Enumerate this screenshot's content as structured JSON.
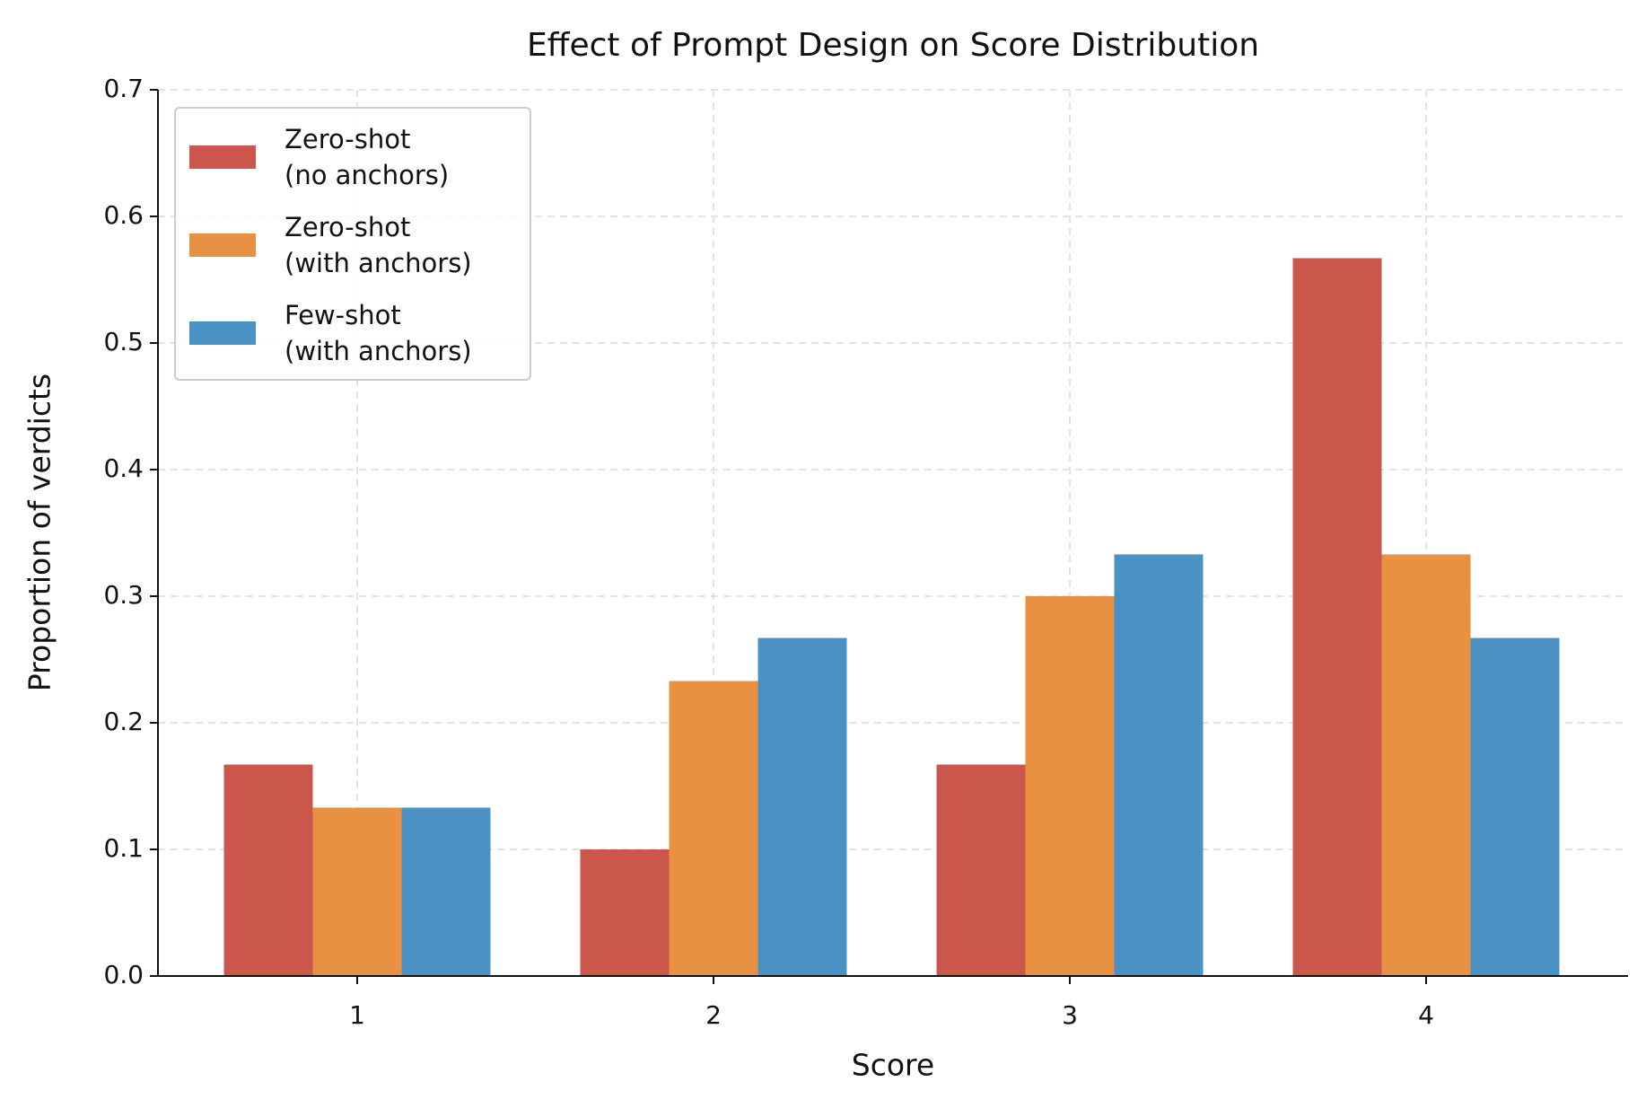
{
  "chart_data": {
    "type": "bar",
    "title": "Effect of Prompt Design on Score Distribution",
    "x_label": "Score",
    "y_label": "Proportion of verdicts",
    "categories": [
      "1",
      "2",
      "3",
      "4"
    ],
    "series": [
      {
        "name": "Zero-shot\n(no anchors)",
        "color": "#cb564b",
        "values": [
          0.167,
          0.1,
          0.167,
          0.567
        ]
      },
      {
        "name": "Zero-shot\n(with anchors)",
        "color": "#e99143",
        "values": [
          0.133,
          0.233,
          0.3,
          0.333
        ]
      },
      {
        "name": "Few-shot\n(with anchors)",
        "color": "#4a92c4",
        "values": [
          0.133,
          0.267,
          0.333,
          0.267
        ]
      }
    ],
    "ylim": [
      0,
      0.7
    ],
    "yticks": [
      {
        "value": 0,
        "label": "0.0"
      },
      0.1,
      0.2,
      0.3,
      0.4,
      0.5,
      0.6,
      0.7
    ],
    "grid": true,
    "legend": "upper left"
  }
}
